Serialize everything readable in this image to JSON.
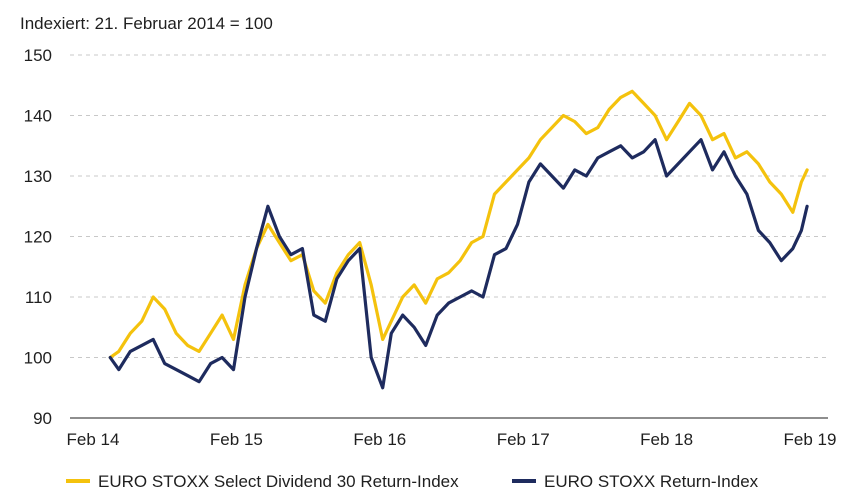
{
  "chart_data": {
    "type": "line",
    "subtitle": "Indexiert: 21. Februar 2014 = 100",
    "ylim": [
      90,
      150
    ],
    "yticks": [
      90,
      100,
      110,
      120,
      130,
      140,
      150
    ],
    "x_ticks": [
      "Feb 14",
      "Feb 15",
      "Feb 16",
      "Feb 17",
      "Feb 18",
      "Feb 19"
    ],
    "xlim": [
      2014.0,
      2019.0
    ],
    "grid": "horizontal dashed",
    "legend_position": "bottom",
    "series": [
      {
        "name": "EURO STOXX Select Dividend 30 Return-Index",
        "color": "#f4c20d",
        "x": [
          2014.12,
          2014.18,
          2014.26,
          2014.34,
          2014.42,
          2014.5,
          2014.58,
          2014.66,
          2014.74,
          2014.82,
          2014.9,
          2014.98,
          2015.06,
          2015.14,
          2015.22,
          2015.3,
          2015.38,
          2015.46,
          2015.54,
          2015.62,
          2015.7,
          2015.78,
          2015.86,
          2015.94,
          2016.02,
          2016.08,
          2016.16,
          2016.24,
          2016.32,
          2016.4,
          2016.48,
          2016.56,
          2016.64,
          2016.72,
          2016.8,
          2016.88,
          2016.96,
          2017.04,
          2017.12,
          2017.2,
          2017.28,
          2017.36,
          2017.44,
          2017.52,
          2017.6,
          2017.68,
          2017.76,
          2017.84,
          2017.92,
          2018.0,
          2018.08,
          2018.16,
          2018.24,
          2018.32,
          2018.4,
          2018.48,
          2018.56,
          2018.64,
          2018.72,
          2018.8,
          2018.88,
          2018.94,
          2018.98
        ],
        "values": [
          100,
          101,
          104,
          106,
          110,
          108,
          104,
          102,
          101,
          104,
          107,
          103,
          112,
          118,
          122,
          119,
          116,
          117,
          111,
          109,
          114,
          117,
          119,
          112,
          103,
          106,
          110,
          112,
          109,
          113,
          114,
          116,
          119,
          120,
          127,
          129,
          131,
          133,
          136,
          138,
          140,
          139,
          137,
          138,
          141,
          143,
          144,
          142,
          140,
          136,
          139,
          142,
          140,
          136,
          137,
          133,
          134,
          132,
          129,
          127,
          124,
          129,
          131
        ]
      },
      {
        "name": "EURO STOXX Return-Index",
        "color": "#1e2b5e",
        "x": [
          2014.12,
          2014.18,
          2014.26,
          2014.34,
          2014.42,
          2014.5,
          2014.58,
          2014.66,
          2014.74,
          2014.82,
          2014.9,
          2014.98,
          2015.06,
          2015.14,
          2015.22,
          2015.3,
          2015.38,
          2015.46,
          2015.54,
          2015.62,
          2015.7,
          2015.78,
          2015.86,
          2015.94,
          2016.02,
          2016.08,
          2016.16,
          2016.24,
          2016.32,
          2016.4,
          2016.48,
          2016.56,
          2016.64,
          2016.72,
          2016.8,
          2016.88,
          2016.96,
          2017.04,
          2017.12,
          2017.2,
          2017.28,
          2017.36,
          2017.44,
          2017.52,
          2017.6,
          2017.68,
          2017.76,
          2017.84,
          2017.92,
          2018.0,
          2018.08,
          2018.16,
          2018.24,
          2018.32,
          2018.4,
          2018.48,
          2018.56,
          2018.64,
          2018.72,
          2018.8,
          2018.88,
          2018.94,
          2018.98
        ],
        "values": [
          100,
          98,
          101,
          102,
          103,
          99,
          98,
          97,
          96,
          99,
          100,
          98,
          110,
          118,
          125,
          120,
          117,
          118,
          107,
          106,
          113,
          116,
          118,
          100,
          95,
          104,
          107,
          105,
          102,
          107,
          109,
          110,
          111,
          110,
          117,
          118,
          122,
          129,
          132,
          130,
          128,
          131,
          130,
          133,
          134,
          135,
          133,
          134,
          136,
          130,
          132,
          134,
          136,
          131,
          134,
          130,
          127,
          121,
          119,
          116,
          118,
          121,
          125
        ]
      }
    ]
  }
}
